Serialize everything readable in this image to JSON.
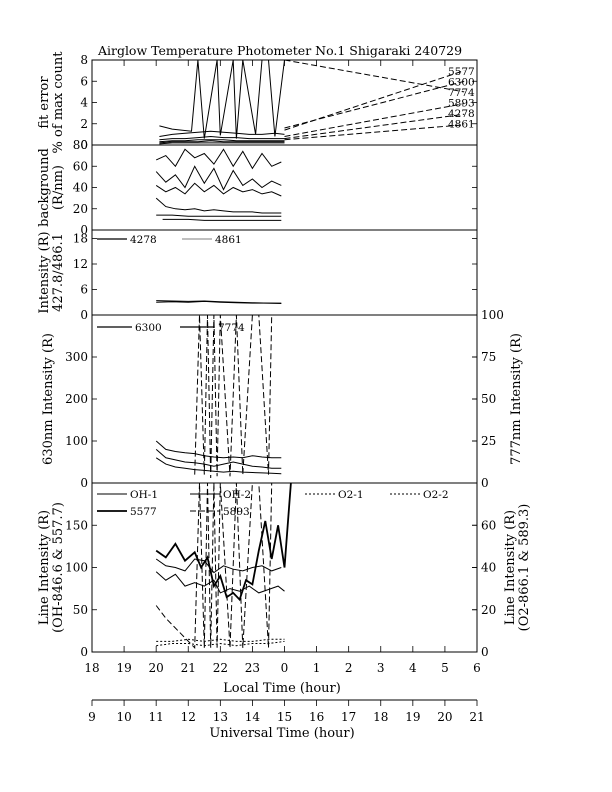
{
  "chart_data": {
    "type": "line",
    "title": "Airglow Temperature Photometer No.1  Shigaraki  240729",
    "x_axes": {
      "local": {
        "label": "Local Time (hour)",
        "range": [
          18,
          30
        ],
        "tick_labels": [
          "18",
          "19",
          "20",
          "21",
          "22",
          "23",
          "0",
          "1",
          "2",
          "3",
          "4",
          "5",
          "6"
        ]
      },
      "universal": {
        "label": "Universal Time (hour)",
        "range": [
          9,
          21
        ],
        "tick_labels": [
          "9",
          "10",
          "11",
          "12",
          "13",
          "14",
          "15",
          "16",
          "17",
          "18",
          "19",
          "20",
          "21"
        ]
      }
    },
    "panels": [
      {
        "id": "fit_error",
        "ylabel": [
          "fit error",
          "% of max count"
        ],
        "ylim": [
          0,
          8
        ],
        "yticks": [
          "0",
          "2",
          "4",
          "6",
          "8"
        ],
        "legend": [
          "5577",
          "6300",
          "7774",
          "5893",
          "4278",
          "4861"
        ],
        "series": [
          {
            "name": "5577",
            "style": "solid",
            "x": [
              20.1,
              20.5,
              20.9,
              21.3,
              21.7,
              22.1,
              22.5,
              22.9,
              23.3,
              23.7,
              24.0
            ],
            "y": [
              0.8,
              1.0,
              1.1,
              1.2,
              1.3,
              1.2,
              1.1,
              1.0,
              1.0,
              1.1,
              1.0
            ]
          },
          {
            "name": "6300",
            "style": "solid",
            "x": [
              20.1,
              20.5,
              20.9,
              21.3,
              21.7,
              22.1,
              22.5,
              22.9,
              23.3,
              23.7,
              24.0
            ],
            "y": [
              0.5,
              0.6,
              0.6,
              0.7,
              0.8,
              0.7,
              0.7,
              0.6,
              0.6,
              0.6,
              0.6
            ]
          },
          {
            "name": "7774",
            "style": "solid",
            "x": [
              20.1,
              20.5,
              21.1,
              21.3,
              21.5,
              21.9,
              22.0,
              22.4,
              22.5,
              22.7,
              23.1,
              23.3,
              23.5,
              23.7,
              24.0
            ],
            "y": [
              1.8,
              1.5,
              1.3,
              8,
              0.6,
              8,
              0.9,
              8,
              0.6,
              8,
              1.0,
              8,
              8,
              0.8,
              8
            ]
          },
          {
            "name": "5893",
            "style": "solid",
            "x": [
              20.1,
              20.5,
              20.9,
              21.3,
              21.7,
              22.1,
              22.5,
              22.9,
              23.3,
              23.7,
              24.0
            ],
            "y": [
              0.3,
              0.4,
              0.4,
              0.5,
              0.5,
              0.5,
              0.4,
              0.4,
              0.4,
              0.4,
              0.4
            ]
          },
          {
            "name": "4278",
            "style": "solid",
            "x": [
              20.1,
              20.5,
              20.9,
              21.3,
              21.7,
              22.1,
              22.5,
              22.9,
              23.3,
              23.7,
              24.0
            ],
            "y": [
              0.2,
              0.3,
              0.3,
              0.3,
              0.4,
              0.3,
              0.3,
              0.3,
              0.3,
              0.3,
              0.3
            ]
          },
          {
            "name": "4861",
            "style": "solid",
            "x": [
              20.1,
              20.5,
              20.9,
              21.3,
              21.7,
              22.1,
              22.5,
              22.9,
              23.3,
              23.7,
              24.0
            ],
            "y": [
              0.1,
              0.2,
              0.2,
              0.2,
              0.2,
              0.2,
              0.2,
              0.2,
              0.2,
              0.2,
              0.2
            ]
          },
          {
            "name": "5577-ext",
            "style": "dashed",
            "x": [
              24.0,
              29.6
            ],
            "y": [
              1.4,
              7.0
            ]
          },
          {
            "name": "6300-ext",
            "style": "dashed",
            "x": [
              24.0,
              29.6
            ],
            "y": [
              1.6,
              6.0
            ]
          },
          {
            "name": "7774-ext",
            "style": "dashed",
            "x": [
              24.0,
              29.6
            ],
            "y": [
              8.0,
              5.0
            ]
          },
          {
            "name": "5893-ext",
            "style": "dashed",
            "x": [
              24.0,
              29.6
            ],
            "y": [
              0.8,
              3.9
            ]
          },
          {
            "name": "4278-ext",
            "style": "dashed",
            "x": [
              24.0,
              29.6
            ],
            "y": [
              0.6,
              2.9
            ]
          },
          {
            "name": "4861-ext",
            "style": "dashed",
            "x": [
              24.0,
              29.6
            ],
            "y": [
              0.5,
              1.9
            ]
          }
        ]
      },
      {
        "id": "background",
        "ylabel": [
          "background",
          "(R/nm)"
        ],
        "ylim": [
          0,
          80
        ],
        "yticks": [
          "0",
          "20",
          "40",
          "60",
          "80"
        ],
        "series": [
          {
            "name": "bg-a",
            "x": [
              20.0,
              20.3,
              20.6,
              20.9,
              21.2,
              21.5,
              21.8,
              22.1,
              22.4,
              22.7,
              23.0,
              23.3,
              23.6,
              23.9
            ],
            "y": [
              66,
              70,
              60,
              76,
              68,
              72,
              62,
              76,
              60,
              74,
              58,
              72,
              60,
              64
            ]
          },
          {
            "name": "bg-b",
            "x": [
              20.0,
              20.3,
              20.6,
              20.9,
              21.2,
              21.5,
              21.8,
              22.1,
              22.4,
              22.7,
              23.0,
              23.3,
              23.6,
              23.9
            ],
            "y": [
              55,
              45,
              52,
              40,
              60,
              44,
              58,
              38,
              56,
              42,
              48,
              40,
              46,
              42
            ]
          },
          {
            "name": "bg-c",
            "x": [
              20.0,
              20.3,
              20.6,
              20.9,
              21.2,
              21.5,
              21.8,
              22.1,
              22.4,
              22.7,
              23.0,
              23.3,
              23.6,
              23.9
            ],
            "y": [
              42,
              36,
              40,
              34,
              44,
              36,
              42,
              34,
              40,
              36,
              38,
              34,
              36,
              32
            ]
          },
          {
            "name": "bg-d",
            "x": [
              20.0,
              20.3,
              20.6,
              20.9,
              21.2,
              21.5,
              21.8,
              22.1,
              22.4,
              22.7,
              23.0,
              23.3,
              23.6,
              23.9
            ],
            "y": [
              30,
              22,
              20,
              19,
              20,
              18,
              19,
              18,
              17,
              17,
              17,
              16,
              16,
              16
            ]
          },
          {
            "name": "bg-e",
            "x": [
              20.0,
              20.5,
              21.0,
              21.5,
              22.0,
              22.5,
              23.0,
              23.5,
              23.9
            ],
            "y": [
              14,
              14,
              13,
              13,
              13,
              13,
              13,
              13,
              13
            ]
          },
          {
            "name": "bg-f",
            "x": [
              20.2,
              20.6,
              21.0,
              21.5,
              22.0,
              22.5,
              23.0,
              23.5,
              23.9
            ],
            "y": [
              10,
              10,
              10,
              9,
              9,
              9,
              9,
              9,
              9
            ]
          }
        ]
      },
      {
        "id": "intensity_4278_4861",
        "ylabel": [
          "Intensity (R)",
          "427.8/486.1"
        ],
        "ylim": [
          0,
          20
        ],
        "yticks": [
          "0",
          "6",
          "12",
          "18"
        ],
        "legend": [
          "4278",
          "4861"
        ],
        "series": [
          {
            "name": "4278",
            "x": [
              20.0,
              20.5,
              21.0,
              21.5,
              22.0,
              22.5,
              23.0,
              23.5,
              23.9
            ],
            "y": [
              3.4,
              3.3,
              3.2,
              3.3,
              3.1,
              3.0,
              2.9,
              2.8,
              2.8
            ]
          },
          {
            "name": "4861",
            "x": [
              20.0,
              20.5,
              21.0,
              21.5,
              22.0,
              22.5,
              23.0,
              23.5,
              23.9
            ],
            "y": [
              3.0,
              3.1,
              3.0,
              3.2,
              3.0,
              2.9,
              2.8,
              2.8,
              2.7
            ]
          }
        ]
      },
      {
        "id": "intensity_6300_7774",
        "ylabel_left": "630nm Intensity (R)",
        "ylabel_right": "777nm Intensity (R)",
        "ylim_left": [
          0,
          400
        ],
        "ylim_right": [
          0,
          100
        ],
        "yticks_left": [
          "0",
          "100",
          "200",
          "300"
        ],
        "yticks_right": [
          "0",
          "25",
          "50",
          "75",
          "100"
        ],
        "legend": [
          "6300",
          "7774"
        ],
        "series": [
          {
            "name": "6300",
            "axis": "left",
            "style": "solid",
            "x": [
              20.0,
              20.3,
              20.6,
              20.9,
              21.2,
              21.5,
              21.8,
              22.1,
              22.4,
              22.7,
              23.0,
              23.3,
              23.6,
              23.9
            ],
            "y": [
              100,
              80,
              75,
              72,
              70,
              65,
              62,
              60,
              62,
              60,
              65,
              62,
              60,
              60
            ]
          },
          {
            "name": "6300-b",
            "axis": "left",
            "style": "solid",
            "x": [
              20.0,
              20.3,
              20.6,
              20.9,
              21.2,
              21.5,
              21.8,
              22.1,
              22.4,
              22.7,
              23.0,
              23.3,
              23.6,
              23.9
            ],
            "y": [
              80,
              60,
              55,
              50,
              48,
              45,
              40,
              45,
              50,
              45,
              40,
              38,
              35,
              35
            ]
          },
          {
            "name": "6300-c",
            "axis": "left",
            "style": "solid",
            "x": [
              20.0,
              20.3,
              20.6,
              20.9,
              21.2,
              21.5,
              21.8,
              22.1,
              22.4,
              22.7,
              23.0,
              23.3,
              23.6,
              23.9
            ],
            "y": [
              60,
              45,
              38,
              35,
              32,
              30,
              28,
              26,
              28,
              26,
              25,
              24,
              23,
              22
            ]
          },
          {
            "name": "7774",
            "axis": "right",
            "style": "dashed",
            "x": [
              21.2,
              21.35,
              21.5,
              21.6,
              21.7,
              21.8,
              21.9,
              22.0,
              22.3,
              22.5,
              22.7,
              23.0,
              23.2,
              23.5,
              23.6
            ],
            "y": [
              5,
              100,
              5,
              100,
              3,
              100,
              4,
              100,
              4,
              100,
              5,
              100,
              100,
              5,
              100
            ]
          }
        ]
      },
      {
        "id": "line_intensity",
        "ylabel_left": [
          "Line Intensity (R)",
          "(OH-846.6 & 557.7)"
        ],
        "ylabel_right": [
          "Line Intensity (R)",
          "(O2-866.1 & 589.3)"
        ],
        "ylim_left": [
          0,
          200
        ],
        "ylim_right": [
          0,
          80
        ],
        "yticks_left": [
          "0",
          "50",
          "100",
          "150"
        ],
        "yticks_right": [
          "0",
          "20",
          "40",
          "60"
        ],
        "legend": [
          "OH-1",
          "OH-2",
          "O2-1",
          "O2-2",
          "5577",
          "5893"
        ],
        "series": [
          {
            "name": "OH-1",
            "axis": "left",
            "style": "solid",
            "x": [
              20.0,
              20.3,
              20.6,
              20.9,
              21.2,
              21.5,
              21.8,
              22.0,
              22.3,
              22.6,
              22.9,
              23.2,
              23.5,
              23.8,
              24.0
            ],
            "y": [
              95,
              85,
              92,
              78,
              82,
              78,
              85,
              70,
              75,
              72,
              78,
              70,
              74,
              78,
              72
            ]
          },
          {
            "name": "5577",
            "axis": "left",
            "style": "solid-bold",
            "x": [
              20.0,
              20.3,
              20.6,
              20.9,
              21.2,
              21.4,
              21.6,
              21.8,
              22.0,
              22.2,
              22.4,
              22.6,
              22.8,
              23.0,
              23.2,
              23.4,
              23.6,
              23.8,
              24.0,
              24.2
            ],
            "y": [
              120,
              112,
              128,
              108,
              118,
              100,
              112,
              78,
              90,
              65,
              70,
              62,
              85,
              80,
              120,
              155,
              110,
              150,
              100,
              200
            ]
          },
          {
            "name": "OH-2",
            "axis": "left",
            "style": "solid",
            "x": [
              20.0,
              20.3,
              20.6,
              20.9,
              21.2,
              21.5,
              21.8,
              22.1,
              22.4,
              22.7,
              23.0,
              23.3,
              23.6,
              23.9
            ],
            "y": [
              110,
              102,
              100,
              96,
              110,
              108,
              94,
              102,
              98,
              96,
              100,
              102,
              96,
              100
            ]
          },
          {
            "name": "5893",
            "axis": "right",
            "style": "dashed",
            "x": [
              20.0,
              20.3,
              21.2,
              21.35,
              21.5,
              21.6,
              21.7,
              21.8,
              21.9,
              22.0,
              22.3,
              22.5,
              22.7,
              23.0,
              23.2,
              23.5,
              23.6
            ],
            "y": [
              22,
              16,
              2,
              80,
              2,
              80,
              2,
              80,
              2,
              80,
              2,
              80,
              2,
              80,
              80,
              2,
              80
            ]
          },
          {
            "name": "O2-1",
            "axis": "right",
            "style": "dotted",
            "x": [
              20.0,
              20.5,
              21.0,
              21.5,
              22.0,
              22.5,
              23.0,
              23.5,
              24.0
            ],
            "y": [
              5,
              5,
              6,
              5,
              6,
              5,
              5,
              6,
              6
            ]
          },
          {
            "name": "O2-2",
            "axis": "right",
            "style": "dotted",
            "x": [
              20.0,
              20.5,
              21.0,
              21.5,
              22.0,
              22.5,
              23.0,
              23.5,
              24.0
            ],
            "y": [
              3,
              4,
              4,
              3,
              4,
              3,
              4,
              4,
              5
            ]
          }
        ]
      }
    ]
  }
}
